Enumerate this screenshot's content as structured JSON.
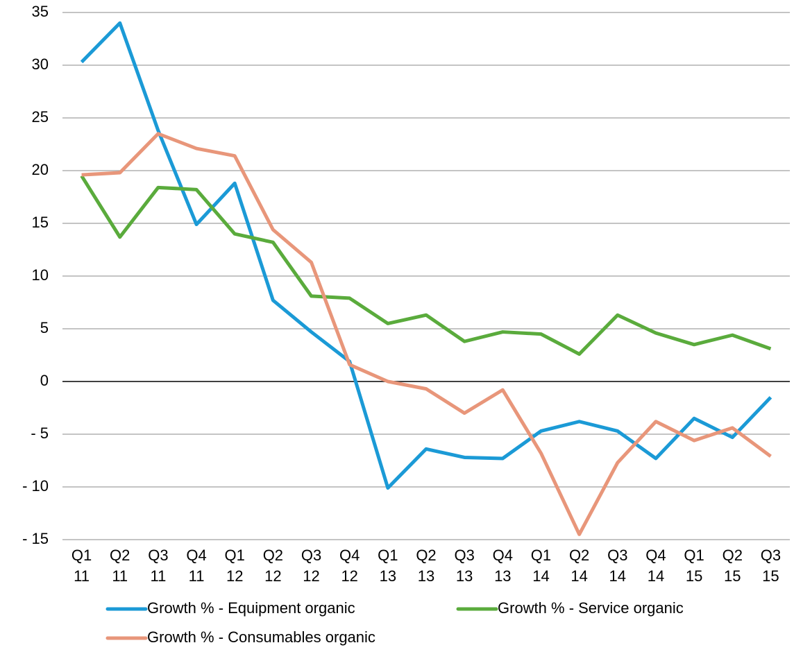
{
  "chart_data": {
    "type": "line",
    "categories": [
      [
        "Q1",
        "11"
      ],
      [
        "Q2",
        "11"
      ],
      [
        "Q3",
        "11"
      ],
      [
        "Q4",
        "11"
      ],
      [
        "Q1",
        "12"
      ],
      [
        "Q2",
        "12"
      ],
      [
        "Q3",
        "12"
      ],
      [
        "Q4",
        "12"
      ],
      [
        "Q1",
        "13"
      ],
      [
        "Q2",
        "13"
      ],
      [
        "Q3",
        "13"
      ],
      [
        "Q4",
        "13"
      ],
      [
        "Q1",
        "14"
      ],
      [
        "Q2",
        "14"
      ],
      [
        "Q3",
        "14"
      ],
      [
        "Q4",
        "14"
      ],
      [
        "Q1",
        "15"
      ],
      [
        "Q2",
        "15"
      ],
      [
        "Q3",
        "15"
      ]
    ],
    "series": [
      {
        "name": "Growth % - Equipment organic",
        "color": "#1b9ad6",
        "values": [
          30.3,
          34.0,
          23.8,
          14.9,
          18.8,
          7.7,
          4.7,
          1.9,
          -10.1,
          -6.4,
          -7.2,
          -7.3,
          -4.7,
          -3.8,
          -4.7,
          -7.3,
          -3.5,
          -5.3,
          -1.5
        ]
      },
      {
        "name": "Growth % - Service organic",
        "color": "#5aab3c",
        "values": [
          19.5,
          13.7,
          18.4,
          18.2,
          14.0,
          13.2,
          8.1,
          7.9,
          5.5,
          6.3,
          3.8,
          4.7,
          4.5,
          2.6,
          6.3,
          4.6,
          3.5,
          4.4,
          3.1
        ]
      },
      {
        "name": "Growth % - Consumables organic",
        "color": "#e8967a",
        "values": [
          19.6,
          19.8,
          23.5,
          22.1,
          21.4,
          14.4,
          11.3,
          1.6,
          0.0,
          -0.7,
          -3.0,
          -0.8,
          -6.8,
          -14.5,
          -7.7,
          -3.8,
          -5.6,
          -4.4,
          -7.1
        ]
      }
    ],
    "ylim": [
      -15,
      35
    ],
    "yticks": [
      {
        "value": -15,
        "label": "- 15"
      },
      {
        "value": -10,
        "label": "- 10"
      },
      {
        "value": -5,
        "label": "- 5"
      },
      0,
      5,
      10,
      15,
      20,
      25,
      30,
      35
    ],
    "grid": true,
    "legend": "bottom"
  }
}
